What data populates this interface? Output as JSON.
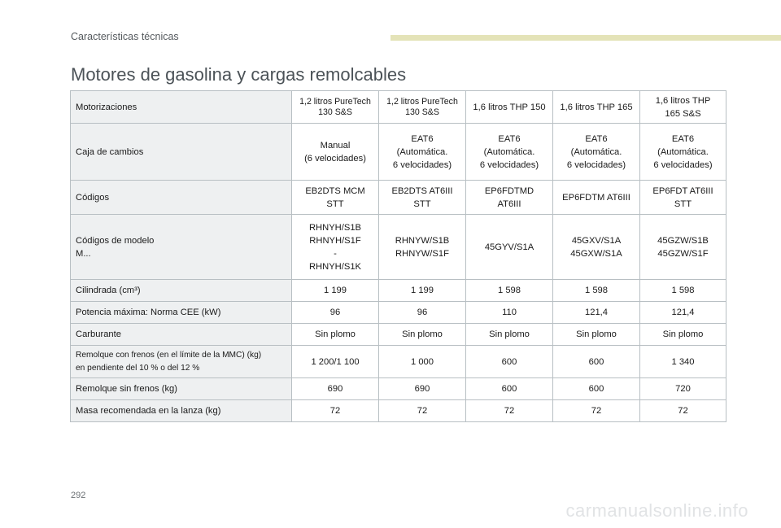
{
  "section_label": "Características técnicas",
  "page_title": "Motores de gasolina y cargas remolcables",
  "page_number": "292",
  "watermark": "carmanualsonline.info",
  "colors": {
    "header_bar": "#e4e3b8",
    "label_cell_bg": "#eef0f1",
    "title": "#4b5257"
  },
  "table": {
    "rows": [
      {
        "label": "Motorizaciones",
        "cells": [
          "1,2 litros PureTech\n130 S&S",
          "1,2 litros PureTech\n130 S&S",
          "1,6 litros THP 150",
          "1,6 litros THP 165",
          "1,6 litros THP\n165 S&S"
        ]
      },
      {
        "label": "Caja de cambios",
        "cells": [
          "Manual\n(6 velocidades)",
          "EAT6\n(Automática.\n6 velocidades)",
          "EAT6\n(Automática.\n6 velocidades)",
          "EAT6\n(Automática.\n6 velocidades)",
          "EAT6\n(Automática.\n6 velocidades)"
        ]
      },
      {
        "label": "Códigos",
        "cells": [
          "EB2DTS MCM\nSTT",
          "EB2DTS AT6III\nSTT",
          "EP6FDTMD\nAT6III",
          "EP6FDTM AT6III",
          "EP6FDT AT6III\nSTT"
        ]
      },
      {
        "label": "Códigos de modelo\nM...",
        "cells": [
          "RHNYH/S1B\nRHNYH/S1F\n-\nRHNYH/S1K",
          "RHNYW/S1B\nRHNYW/S1F",
          "45GYV/S1A",
          "45GXV/S1A\n45GXW/S1A",
          "45GZW/S1B\n45GZW/S1F"
        ]
      },
      {
        "label": "Cilindrada (cm³)",
        "cells": [
          "1 199",
          "1 199",
          "1 598",
          "1 598",
          "1 598"
        ]
      },
      {
        "label": "Potencia máxima: Norma CEE (kW)",
        "cells": [
          "96",
          "96",
          "110",
          "121,4",
          "121,4"
        ]
      },
      {
        "label": "Carburante",
        "cells": [
          "Sin plomo",
          "Sin plomo",
          "Sin plomo",
          "Sin plomo",
          "Sin plomo"
        ]
      },
      {
        "label": "Remolque con frenos (en el límite de la MMC) (kg)\nen pendiente del 10 % o del 12 %",
        "cells": [
          "1 200/1 100",
          "1 000",
          "600",
          "600",
          "1 340"
        ]
      },
      {
        "label": "Remolque sin frenos (kg)",
        "cells": [
          "690",
          "690",
          "600",
          "600",
          "720"
        ]
      },
      {
        "label": "Masa recomendada en la lanza (kg)",
        "cells": [
          "72",
          "72",
          "72",
          "72",
          "72"
        ]
      }
    ]
  }
}
